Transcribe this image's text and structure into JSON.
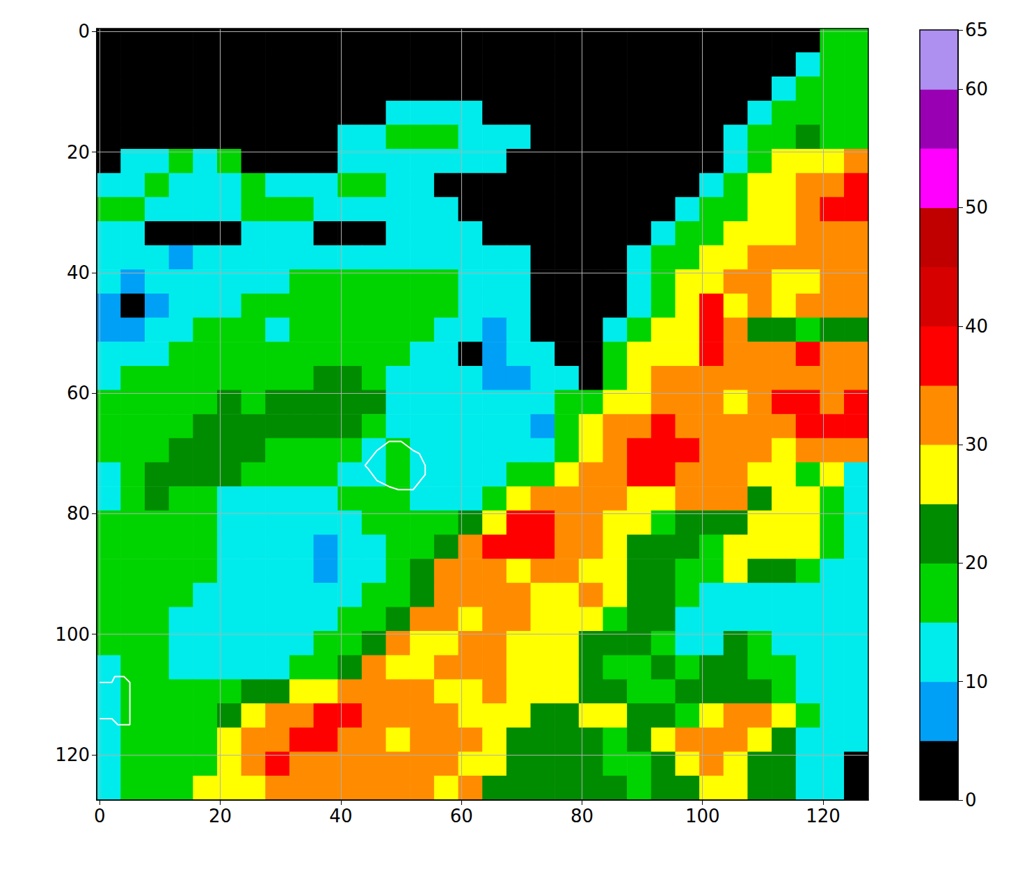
{
  "chart_data": {
    "type": "heatmap",
    "x": [
      1.5,
      5.5,
      9.5,
      13.5,
      17.5,
      21.5,
      25.5,
      29.5,
      33.5,
      37.5,
      41.5,
      45.5,
      49.5,
      53.5,
      57.5,
      61.5,
      65.5,
      69.5,
      73.5,
      77.5,
      81.5,
      85.5,
      89.5,
      93.5,
      97.5,
      101.5,
      105.5,
      109.5,
      113.5,
      117.5,
      121.5,
      125.5
    ],
    "y": [
      1.5,
      5.5,
      9.5,
      13.5,
      17.5,
      21.5,
      25.5,
      29.5,
      33.5,
      37.5,
      41.5,
      45.5,
      49.5,
      53.5,
      57.5,
      61.5,
      65.5,
      69.5,
      73.5,
      77.5,
      81.5,
      85.5,
      89.5,
      93.5,
      97.5,
      101.5,
      105.5,
      109.5,
      113.5,
      117.5,
      121.5,
      125.5
    ],
    "cells": [
      [
        2,
        2,
        2,
        2,
        2,
        2,
        2,
        2,
        2,
        2,
        2,
        2,
        2,
        2,
        2,
        2,
        2,
        2,
        2,
        2,
        2,
        2,
        2,
        2,
        2,
        2,
        2,
        2,
        2,
        2,
        17,
        17
      ],
      [
        2,
        2,
        2,
        2,
        2,
        2,
        2,
        2,
        2,
        2,
        2,
        2,
        2,
        2,
        2,
        2,
        2,
        2,
        2,
        2,
        2,
        2,
        2,
        2,
        2,
        2,
        2,
        2,
        2,
        12,
        17,
        17
      ],
      [
        2,
        2,
        2,
        2,
        2,
        2,
        2,
        2,
        2,
        2,
        2,
        2,
        2,
        2,
        2,
        2,
        2,
        2,
        2,
        2,
        2,
        2,
        2,
        2,
        2,
        2,
        2,
        2,
        12,
        17,
        17,
        17
      ],
      [
        2,
        2,
        2,
        2,
        2,
        2,
        2,
        2,
        2,
        2,
        2,
        2,
        12,
        12,
        12,
        12,
        2,
        2,
        2,
        2,
        2,
        2,
        2,
        2,
        2,
        2,
        2,
        12,
        17,
        17,
        17,
        17
      ],
      [
        2,
        2,
        2,
        2,
        2,
        2,
        2,
        2,
        2,
        2,
        12,
        12,
        17,
        17,
        17,
        12,
        12,
        12,
        2,
        2,
        2,
        2,
        2,
        2,
        2,
        2,
        12,
        17,
        17,
        22,
        17,
        17
      ],
      [
        2,
        12,
        12,
        17,
        12,
        17,
        2,
        2,
        2,
        2,
        12,
        12,
        12,
        12,
        12,
        12,
        12,
        2,
        2,
        2,
        2,
        2,
        2,
        2,
        2,
        2,
        12,
        17,
        27,
        27,
        27,
        32
      ],
      [
        12,
        12,
        17,
        12,
        12,
        12,
        17,
        12,
        12,
        12,
        17,
        17,
        12,
        12,
        2,
        2,
        2,
        2,
        2,
        2,
        2,
        2,
        2,
        2,
        2,
        12,
        17,
        27,
        27,
        32,
        32,
        37
      ],
      [
        17,
        17,
        12,
        12,
        12,
        12,
        17,
        17,
        17,
        12,
        12,
        12,
        12,
        12,
        12,
        2,
        2,
        2,
        2,
        2,
        2,
        2,
        2,
        2,
        12,
        17,
        17,
        27,
        27,
        32,
        37,
        37
      ],
      [
        12,
        12,
        2,
        2,
        2,
        2,
        12,
        12,
        12,
        2,
        2,
        2,
        12,
        12,
        12,
        12,
        2,
        2,
        2,
        2,
        2,
        2,
        2,
        12,
        17,
        17,
        27,
        27,
        27,
        32,
        32,
        32
      ],
      [
        12,
        12,
        12,
        7,
        12,
        12,
        12,
        12,
        12,
        12,
        12,
        12,
        12,
        12,
        12,
        12,
        12,
        12,
        2,
        2,
        2,
        2,
        12,
        17,
        17,
        27,
        27,
        32,
        32,
        32,
        32,
        32
      ],
      [
        12,
        7,
        12,
        12,
        12,
        12,
        12,
        12,
        17,
        17,
        17,
        17,
        17,
        17,
        17,
        12,
        12,
        12,
        2,
        2,
        2,
        2,
        12,
        17,
        27,
        27,
        32,
        32,
        27,
        27,
        32,
        32
      ],
      [
        7,
        2,
        7,
        12,
        12,
        12,
        17,
        17,
        17,
        17,
        17,
        17,
        17,
        17,
        17,
        12,
        12,
        12,
        2,
        2,
        2,
        2,
        12,
        17,
        27,
        37,
        27,
        32,
        27,
        32,
        32,
        32
      ],
      [
        7,
        7,
        12,
        12,
        17,
        17,
        17,
        12,
        17,
        17,
        17,
        17,
        17,
        17,
        12,
        12,
        7,
        12,
        2,
        2,
        2,
        12,
        17,
        27,
        27,
        37,
        32,
        22,
        22,
        17,
        22,
        22
      ],
      [
        12,
        12,
        12,
        17,
        17,
        17,
        17,
        17,
        17,
        17,
        17,
        17,
        17,
        12,
        12,
        2,
        7,
        12,
        12,
        2,
        2,
        17,
        27,
        27,
        27,
        37,
        32,
        32,
        32,
        37,
        32,
        32
      ],
      [
        12,
        17,
        17,
        17,
        17,
        17,
        17,
        17,
        17,
        22,
        22,
        17,
        12,
        12,
        12,
        12,
        7,
        7,
        12,
        12,
        2,
        17,
        27,
        32,
        32,
        32,
        32,
        32,
        32,
        32,
        32,
        32
      ],
      [
        17,
        17,
        17,
        17,
        17,
        22,
        17,
        22,
        22,
        22,
        22,
        22,
        12,
        12,
        12,
        12,
        12,
        12,
        12,
        17,
        17,
        27,
        27,
        32,
        32,
        32,
        27,
        32,
        37,
        37,
        32,
        37
      ],
      [
        17,
        17,
        17,
        17,
        22,
        22,
        22,
        22,
        22,
        22,
        22,
        17,
        12,
        12,
        12,
        12,
        12,
        12,
        7,
        17,
        27,
        32,
        32,
        37,
        32,
        32,
        32,
        32,
        32,
        37,
        37,
        37
      ],
      [
        17,
        17,
        17,
        22,
        22,
        22,
        22,
        17,
        17,
        17,
        17,
        12,
        17,
        12,
        12,
        12,
        12,
        12,
        12,
        17,
        27,
        32,
        37,
        37,
        37,
        32,
        32,
        32,
        27,
        32,
        32,
        32
      ],
      [
        12,
        17,
        22,
        22,
        22,
        22,
        17,
        17,
        17,
        17,
        12,
        12,
        17,
        12,
        12,
        12,
        12,
        17,
        17,
        27,
        32,
        32,
        37,
        37,
        32,
        32,
        32,
        27,
        27,
        17,
        27,
        12
      ],
      [
        12,
        17,
        22,
        17,
        17,
        12,
        12,
        12,
        12,
        12,
        17,
        17,
        17,
        12,
        12,
        12,
        17,
        27,
        32,
        32,
        32,
        32,
        27,
        27,
        32,
        32,
        32,
        22,
        27,
        27,
        17,
        12
      ],
      [
        17,
        17,
        17,
        17,
        17,
        12,
        12,
        12,
        12,
        12,
        12,
        17,
        17,
        17,
        17,
        22,
        27,
        37,
        37,
        32,
        32,
        27,
        27,
        17,
        22,
        22,
        22,
        27,
        27,
        27,
        17,
        12
      ],
      [
        17,
        17,
        17,
        17,
        17,
        12,
        12,
        12,
        12,
        7,
        12,
        12,
        17,
        17,
        22,
        32,
        37,
        37,
        37,
        32,
        32,
        27,
        22,
        22,
        22,
        17,
        27,
        27,
        27,
        27,
        17,
        12
      ],
      [
        17,
        17,
        17,
        17,
        17,
        12,
        12,
        12,
        12,
        7,
        12,
        12,
        17,
        22,
        32,
        32,
        32,
        27,
        32,
        32,
        27,
        27,
        22,
        22,
        17,
        17,
        27,
        22,
        22,
        17,
        12,
        12
      ],
      [
        17,
        17,
        17,
        17,
        12,
        12,
        12,
        12,
        12,
        12,
        12,
        17,
        17,
        22,
        32,
        32,
        32,
        32,
        27,
        27,
        32,
        27,
        22,
        22,
        17,
        12,
        12,
        12,
        12,
        12,
        12,
        12
      ],
      [
        17,
        17,
        17,
        12,
        12,
        12,
        12,
        12,
        12,
        12,
        17,
        17,
        22,
        32,
        32,
        27,
        32,
        32,
        27,
        27,
        27,
        17,
        22,
        22,
        12,
        12,
        12,
        12,
        12,
        12,
        12,
        12
      ],
      [
        17,
        17,
        17,
        12,
        12,
        12,
        12,
        12,
        12,
        17,
        17,
        22,
        32,
        27,
        27,
        32,
        32,
        27,
        27,
        27,
        22,
        22,
        22,
        17,
        12,
        12,
        22,
        17,
        12,
        12,
        12,
        12
      ],
      [
        12,
        17,
        17,
        12,
        12,
        12,
        12,
        12,
        17,
        17,
        22,
        32,
        27,
        27,
        32,
        32,
        32,
        27,
        27,
        27,
        22,
        17,
        17,
        22,
        17,
        22,
        22,
        17,
        17,
        12,
        12,
        12
      ],
      [
        12,
        17,
        17,
        17,
        17,
        17,
        22,
        22,
        27,
        27,
        32,
        32,
        32,
        32,
        27,
        27,
        32,
        27,
        27,
        27,
        22,
        22,
        17,
        17,
        22,
        22,
        22,
        22,
        17,
        12,
        12,
        12
      ],
      [
        12,
        17,
        17,
        17,
        17,
        22,
        27,
        32,
        32,
        37,
        37,
        32,
        32,
        32,
        32,
        27,
        27,
        27,
        22,
        22,
        27,
        27,
        22,
        22,
        17,
        27,
        32,
        32,
        27,
        17,
        12,
        12
      ],
      [
        12,
        17,
        17,
        17,
        17,
        27,
        32,
        32,
        37,
        37,
        32,
        32,
        27,
        32,
        32,
        32,
        27,
        22,
        22,
        22,
        22,
        17,
        22,
        27,
        32,
        32,
        32,
        27,
        22,
        12,
        12,
        12
      ],
      [
        12,
        17,
        17,
        17,
        17,
        27,
        32,
        37,
        32,
        32,
        32,
        32,
        32,
        32,
        32,
        27,
        27,
        22,
        22,
        22,
        22,
        17,
        17,
        22,
        27,
        32,
        27,
        22,
        22,
        12,
        12,
        2
      ],
      [
        12,
        17,
        17,
        17,
        27,
        27,
        27,
        32,
        32,
        32,
        32,
        32,
        32,
        32,
        27,
        32,
        22,
        22,
        22,
        22,
        22,
        22,
        17,
        22,
        22,
        27,
        27,
        22,
        22,
        12,
        12,
        2
      ]
    ],
    "xlim": [
      -0.5,
      127.5
    ],
    "ylim": [
      -0.5,
      127.5
    ],
    "xticks": [
      0,
      20,
      40,
      60,
      80,
      100,
      120
    ],
    "yticks": [
      0,
      20,
      40,
      60,
      80,
      100,
      120
    ],
    "grid": true,
    "colorbar": {
      "range": [
        0,
        65
      ],
      "ticks": [
        0,
        10,
        20,
        30,
        40,
        50,
        60
      ],
      "bounds": [
        0,
        5,
        10,
        15,
        20,
        25,
        30,
        35,
        40,
        45,
        50,
        55,
        60,
        65
      ],
      "colors": [
        "#000000",
        "#00a0f6",
        "#00ecec",
        "#00d400",
        "#008c00",
        "#ffff00",
        "#ff8c00",
        "#ff0000",
        "#d60000",
        "#c00000",
        "#ff00ff",
        "#9900b4",
        "#ad90f0"
      ]
    },
    "contours": {
      "color": "#ffffff",
      "lines": [
        [
          [
            44,
            72
          ],
          [
            46,
            69.5
          ],
          [
            48,
            68
          ],
          [
            50,
            68
          ],
          [
            52,
            69.5
          ],
          [
            53,
            70
          ],
          [
            54,
            72
          ],
          [
            54,
            73.5
          ],
          [
            52,
            76
          ],
          [
            49.5,
            76
          ],
          [
            48,
            75.5
          ],
          [
            46,
            74.5
          ],
          [
            44.5,
            72.5
          ],
          [
            44,
            72
          ]
        ],
        [
          [
            0,
            108
          ],
          [
            2,
            108
          ],
          [
            2.5,
            107
          ],
          [
            4,
            107
          ],
          [
            5,
            108
          ],
          [
            5,
            115
          ],
          [
            3,
            115
          ],
          [
            2,
            114
          ],
          [
            0,
            114
          ]
        ]
      ]
    }
  }
}
